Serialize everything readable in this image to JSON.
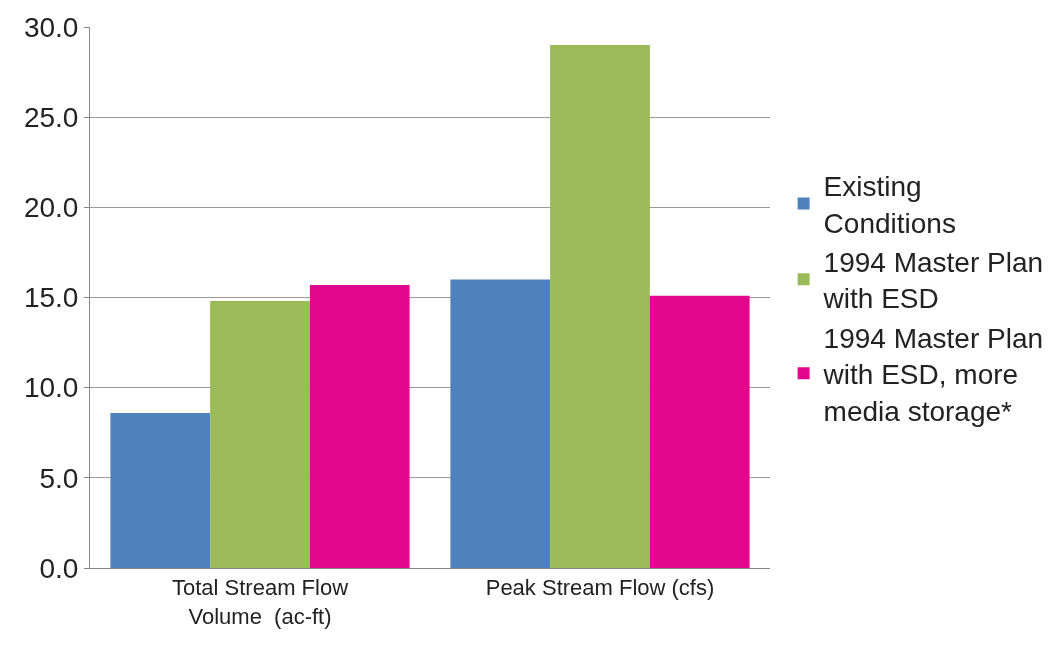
{
  "chart_data": {
    "type": "bar",
    "categories": [
      "Total Stream Flow Volume  (ac-ft)",
      "Peak Stream Flow (cfs)"
    ],
    "series": [
      {
        "name": "Existing Conditions",
        "color": "#4f81bd",
        "values": [
          8.6,
          16.0
        ]
      },
      {
        "name": "1994 Master Plan with ESD",
        "color": "#9bbb59",
        "values": [
          14.8,
          29.0
        ]
      },
      {
        "name": "1994 Master Plan with ESD, more media storage*",
        "color": "#e2068c",
        "values": [
          15.7,
          15.1
        ]
      }
    ],
    "ylim": [
      0,
      30
    ],
    "yticks": [
      {
        "value": 0,
        "label": "0.0"
      },
      {
        "value": 5,
        "label": "5.0"
      },
      {
        "value": 10,
        "label": "10.0"
      },
      {
        "value": 15,
        "label": "15.0"
      },
      {
        "value": 20,
        "label": "20.0"
      },
      {
        "value": 25,
        "label": "25.0"
      },
      {
        "value": 30,
        "label": "30.0"
      }
    ],
    "grid": "y",
    "legend": "right"
  }
}
